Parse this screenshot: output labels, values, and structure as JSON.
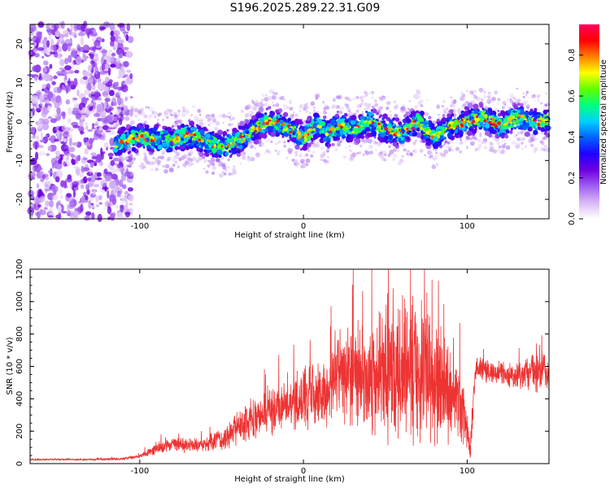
{
  "title": "S196.2025.289.22.31.G09",
  "chart_data": [
    {
      "type": "heatmap",
      "xlabel": "Height of straight line (km)",
      "ylabel": "Frequency (Hz)",
      "xlim": [
        -167,
        150
      ],
      "ylim": [
        -25,
        25
      ],
      "xticks": [
        -100,
        0,
        100
      ],
      "yticks": [
        -20,
        -10,
        0,
        10,
        20
      ],
      "colorbar": {
        "label": "Normalized spectral amplitude",
        "range": [
          0,
          0.95
        ],
        "ticks": [
          0.0,
          0.2,
          0.4,
          0.6,
          0.8
        ],
        "tick_labels": [
          "0.0",
          "0.2",
          "0.4",
          "0.6",
          "0.8"
        ],
        "colors": [
          "#ffffff",
          "#d9b8f5",
          "#a060f0",
          "#7000e0",
          "#2000ff",
          "#0060ff",
          "#00d0ff",
          "#00ff80",
          "#60ff00",
          "#ffff00",
          "#ff8000",
          "#ff0000",
          "#ff0060"
        ]
      },
      "ridge_x": [
        -115,
        -100,
        -90,
        -80,
        -70,
        -60,
        -50,
        -40,
        -30,
        -22,
        -15,
        -8,
        0,
        8,
        15,
        22,
        30,
        40,
        50,
        60,
        70,
        80,
        90,
        100,
        110,
        120,
        130,
        140,
        150
      ],
      "ridge_y": [
        -5.5,
        -4,
        -4.5,
        -5,
        -3.5,
        -5,
        -6.5,
        -5,
        -2,
        0,
        -0.5,
        -2,
        -4,
        -1,
        -3,
        -1,
        -2,
        0,
        -2,
        -3,
        0,
        -4,
        -1,
        0,
        1,
        -1,
        1,
        0,
        0
      ]
    },
    {
      "type": "line",
      "xlabel": "Height of straight line (km)",
      "ylabel": "SNR (10 * v/v)",
      "xlim": [
        -167,
        150
      ],
      "ylim": [
        0,
        1200
      ],
      "xticks": [
        -100,
        0,
        100
      ],
      "yticks": [
        0,
        200,
        400,
        600,
        800,
        1000,
        1200
      ],
      "line_color": "#ee3333",
      "x": [
        -167,
        -130,
        -110,
        -100,
        -90,
        -80,
        -70,
        -60,
        -50,
        -40,
        -30,
        -20,
        -10,
        0,
        10,
        20,
        30,
        40,
        50,
        60,
        70,
        80,
        90,
        95,
        100,
        102,
        105,
        110,
        120,
        130,
        140,
        150
      ],
      "y": [
        25,
        25,
        30,
        45,
        90,
        120,
        110,
        115,
        150,
        220,
        280,
        320,
        380,
        420,
        420,
        540,
        540,
        520,
        560,
        560,
        600,
        520,
        440,
        420,
        200,
        60,
        580,
        580,
        560,
        540,
        560,
        560
      ],
      "noise_amplitude": [
        5,
        5,
        8,
        12,
        40,
        45,
        45,
        50,
        70,
        100,
        120,
        140,
        160,
        180,
        200,
        280,
        320,
        340,
        380,
        420,
        420,
        380,
        300,
        250,
        120,
        60,
        80,
        70,
        70,
        80,
        120,
        120
      ],
      "peak_value": 1200
    }
  ]
}
